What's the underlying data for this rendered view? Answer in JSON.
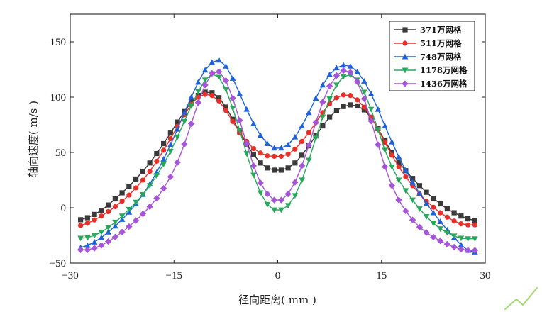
{
  "chart_data": {
    "type": "line",
    "title": "",
    "xlabel": "径向距离( mm )",
    "ylabel": "轴向速度( m/s )",
    "xlim": [
      -30,
      30
    ],
    "ylim": [
      -50,
      175
    ],
    "xticks": [
      "−30",
      "−15",
      "0",
      "15",
      "30"
    ],
    "xtick_values": [
      -30,
      -15,
      0,
      15,
      30
    ],
    "yticks": [
      "−50",
      "0",
      "50",
      "100",
      "150"
    ],
    "ytick_values": [
      -50,
      0,
      50,
      100,
      150
    ],
    "grid": false,
    "legend_position": "top-right",
    "x": [
      -28.5,
      -27.5,
      -26.5,
      -25.5,
      -24.5,
      -23.5,
      -22.5,
      -21.5,
      -20.5,
      -19.5,
      -18.5,
      -17.5,
      -16.5,
      -15.5,
      -14.5,
      -13.5,
      -12.5,
      -11.5,
      -10.5,
      -9.5,
      -8.5,
      -7.5,
      -6.5,
      -5.5,
      -4.5,
      -3.5,
      -2.5,
      -1.5,
      -0.5,
      0.5,
      1.5,
      2.5,
      3.5,
      4.5,
      5.5,
      6.5,
      7.5,
      8.5,
      9.5,
      10.5,
      11.5,
      12.5,
      13.5,
      14.5,
      15.5,
      16.5,
      17.5,
      18.5,
      19.5,
      20.5,
      21.5,
      22.5,
      23.5,
      24.5,
      25.5,
      26.5,
      27.5,
      28.5
    ],
    "series": [
      {
        "name": "371万网格",
        "color": "#3a3a3a",
        "marker": "square",
        "values": [
          -10.8,
          -9.0,
          -6.0,
          -2.5,
          2.5,
          8.0,
          13.5,
          19.5,
          26.0,
          33.0,
          40.5,
          49.0,
          58.0,
          67.5,
          77.5,
          87.0,
          95.5,
          101.5,
          104.5,
          104.0,
          99.5,
          91.0,
          80.0,
          68.5,
          57.5,
          48.0,
          40.5,
          36.0,
          34.0,
          34.0,
          36.0,
          40.5,
          47.5,
          56.0,
          65.0,
          74.0,
          82.0,
          88.0,
          91.5,
          93.0,
          92.0,
          88.5,
          81.5,
          71.5,
          60.5,
          50.0,
          41.0,
          33.5,
          26.5,
          20.0,
          14.0,
          8.5,
          3.5,
          -1.0,
          -4.5,
          -7.5,
          -10.0,
          -11.5
        ]
      },
      {
        "name": "511万网格",
        "color": "#e8302a",
        "marker": "circle",
        "values": [
          -16.0,
          -14.0,
          -11.0,
          -7.5,
          -3.5,
          1.0,
          6.0,
          11.5,
          18.0,
          25.0,
          33.0,
          42.0,
          52.0,
          62.5,
          73.5,
          84.0,
          93.5,
          100.0,
          102.5,
          101.5,
          96.5,
          88.0,
          78.0,
          68.0,
          60.0,
          53.5,
          49.5,
          47.0,
          46.5,
          46.5,
          48.5,
          53.0,
          60.0,
          68.0,
          77.0,
          86.0,
          94.0,
          99.5,
          102.0,
          101.5,
          97.5,
          91.0,
          82.0,
          71.0,
          59.0,
          47.5,
          37.0,
          28.0,
          20.0,
          12.5,
          6.0,
          0.5,
          -4.5,
          -8.5,
          -12.0,
          -14.5,
          -15.5,
          -15.5
        ]
      },
      {
        "name": "748万网格",
        "color": "#1f62d8",
        "marker": "triangle-up",
        "values": [
          -36.0,
          -34.0,
          -31.0,
          -27.0,
          -22.0,
          -16.5,
          -10.5,
          -4.0,
          3.5,
          12.0,
          21.5,
          32.0,
          44.0,
          57.0,
          71.0,
          86.0,
          100.0,
          113.5,
          124.5,
          131.5,
          133.5,
          128.0,
          117.0,
          103.0,
          89.0,
          76.0,
          65.5,
          58.0,
          54.0,
          54.0,
          57.0,
          64.0,
          74.0,
          86.0,
          99.0,
          111.0,
          120.5,
          126.5,
          129.0,
          128.0,
          123.0,
          114.5,
          103.0,
          89.0,
          74.0,
          59.5,
          46.0,
          34.0,
          23.0,
          13.0,
          4.0,
          -4.5,
          -12.5,
          -20.0,
          -27.0,
          -33.5,
          -38.5,
          -40.0
        ]
      },
      {
        "name": "1178万网格",
        "color": "#27a85a",
        "marker": "triangle-down",
        "values": [
          -27.5,
          -27.0,
          -25.0,
          -22.0,
          -18.0,
          -13.0,
          -7.5,
          -1.5,
          5.0,
          12.0,
          20.0,
          29.0,
          39.5,
          51.0,
          64.0,
          78.0,
          92.0,
          105.0,
          115.5,
          121.0,
          118.0,
          107.0,
          90.0,
          70.0,
          49.0,
          29.5,
          13.5,
          3.0,
          -2.0,
          -2.0,
          2.0,
          11.0,
          25.0,
          43.0,
          63.0,
          82.0,
          98.5,
          111.0,
          118.5,
          120.0,
          115.5,
          104.5,
          89.0,
          70.5,
          52.0,
          37.0,
          25.0,
          15.5,
          7.0,
          -1.0,
          -8.0,
          -14.0,
          -19.0,
          -22.5,
          -25.5,
          -27.5,
          -28.0,
          -28.0
        ]
      },
      {
        "name": "1436万网格",
        "color": "#a755d8",
        "marker": "diamond",
        "values": [
          -38.0,
          -38.0,
          -36.5,
          -34.0,
          -30.5,
          -26.5,
          -22.0,
          -17.0,
          -11.5,
          -5.5,
          1.0,
          8.5,
          17.5,
          28.0,
          41.0,
          57.5,
          76.0,
          95.0,
          111.0,
          121.5,
          123.0,
          115.0,
          99.0,
          79.0,
          58.0,
          38.0,
          22.5,
          12.5,
          7.0,
          7.0,
          12.5,
          23.0,
          38.0,
          56.5,
          77.0,
          95.5,
          110.0,
          119.5,
          124.0,
          122.5,
          114.0,
          98.5,
          78.5,
          57.0,
          37.0,
          20.0,
          7.0,
          -3.0,
          -11.0,
          -17.5,
          -22.5,
          -26.5,
          -30.0,
          -33.0,
          -35.5,
          -37.5,
          -38.5,
          -38.5
        ]
      }
    ]
  },
  "decoration": {
    "watermark_color": "#7ec832"
  }
}
